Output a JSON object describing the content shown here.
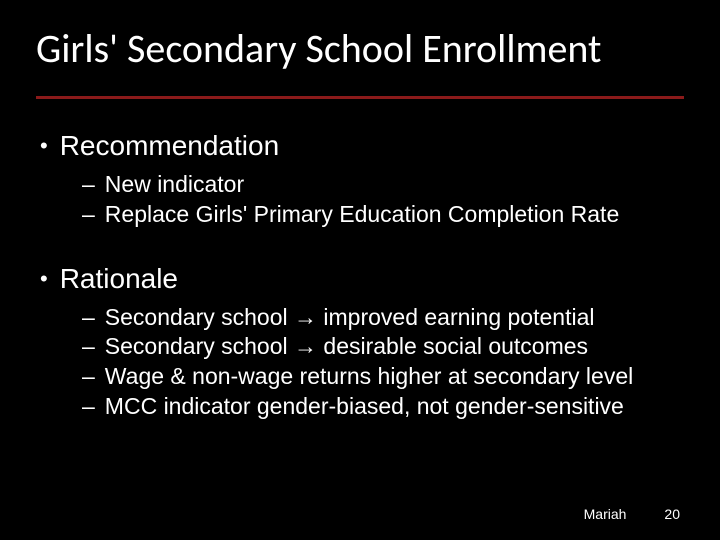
{
  "slide": {
    "title": "Girls' Secondary School Enrollment",
    "divider_color": "#8b1a1a",
    "background_color": "#000000",
    "text_color": "#ffffff",
    "title_fontsize": 40,
    "header_fontsize": 28,
    "item_fontsize": 23,
    "footer_fontsize": 14,
    "sections": [
      {
        "header": "Recommendation",
        "items": [
          "New indicator",
          "Replace Girls' Primary Education Completion Rate"
        ]
      },
      {
        "header": "Rationale",
        "items": [
          "Secondary school → improved earning potential",
          "Secondary school → desirable social outcomes",
          "Wage & non-wage returns higher at secondary level",
          "MCC indicator gender-biased, not gender-sensitive"
        ]
      }
    ],
    "footer": {
      "author": "Mariah",
      "page_number": "20"
    }
  }
}
